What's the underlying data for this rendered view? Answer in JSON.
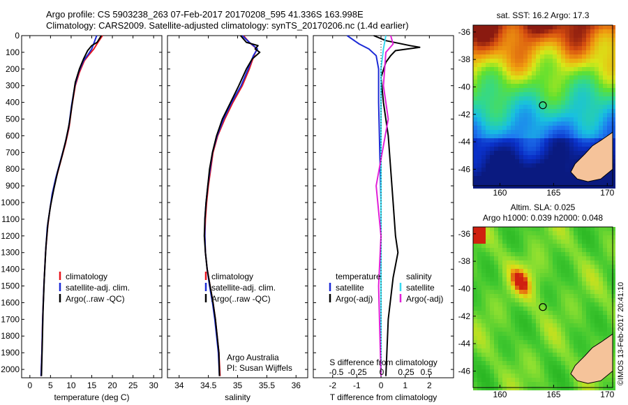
{
  "header": {
    "line1": "Argo profile: CS 5903238_263 07-Feb-2017 20170208_595 41.336S 163.998E",
    "line2": "Climatology: CARS2009. Satellite-adjusted climatology: synTS_20170206.nc (1.4d earlier)"
  },
  "colors": {
    "climatology": "#e8141c",
    "satellite": "#1c2bd6",
    "argo": "#000000",
    "satellite_salinity": "#38d8f0",
    "argo_salinity_adj": "#e020d8",
    "land": "#f5c39a"
  },
  "depth_ticks": [
    "0",
    "100",
    "200",
    "300",
    "400",
    "500",
    "600",
    "700",
    "800",
    "900",
    "1000",
    "1100",
    "1200",
    "1300",
    "1400",
    "1500",
    "1600",
    "1700",
    "1800",
    "1900",
    "2000"
  ],
  "chart_data": [
    {
      "type": "line",
      "xlabel": "temperature (deg C)",
      "ylabel": "",
      "xlim": [
        -2,
        32
      ],
      "ylim": [
        2050,
        0
      ],
      "xticks": [
        "0",
        "5",
        "10",
        "15",
        "20",
        "25",
        "30"
      ],
      "legend_entries": [
        "climatology",
        "satellite-adj. clim.",
        "Argo(..raw -QC)"
      ],
      "series": [
        {
          "name": "climatology",
          "points": [
            [
              17.6,
              0
            ],
            [
              16.5,
              40
            ],
            [
              15.5,
              80
            ],
            [
              14.5,
              110
            ],
            [
              13.2,
              150
            ],
            [
              12.0,
              220
            ],
            [
              11.0,
              300
            ],
            [
              10.2,
              420
            ],
            [
              9.5,
              550
            ],
            [
              8.6,
              650
            ],
            [
              7.5,
              750
            ],
            [
              6.4,
              850
            ],
            [
              5.5,
              950
            ],
            [
              4.8,
              1050
            ],
            [
              4.3,
              1150
            ],
            [
              3.8,
              1300
            ],
            [
              3.4,
              1500
            ],
            [
              3.1,
              1700
            ],
            [
              2.9,
              1900
            ],
            [
              2.7,
              2040
            ]
          ]
        },
        {
          "name": "satellite-adj. clim.",
          "points": [
            [
              16.2,
              0
            ],
            [
              15.6,
              40
            ],
            [
              15.0,
              80
            ],
            [
              14.2,
              110
            ],
            [
              13.0,
              150
            ],
            [
              11.8,
              220
            ],
            [
              10.9,
              300
            ],
            [
              10.1,
              420
            ],
            [
              9.4,
              550
            ],
            [
              8.5,
              650
            ],
            [
              7.4,
              750
            ],
            [
              6.3,
              850
            ],
            [
              5.4,
              950
            ],
            [
              4.8,
              1050
            ],
            [
              4.2,
              1150
            ],
            [
              3.8,
              1300
            ],
            [
              3.4,
              1500
            ],
            [
              3.1,
              1700
            ],
            [
              2.9,
              1900
            ],
            [
              2.7,
              2040
            ]
          ]
        },
        {
          "name": "Argo(..raw -QC)",
          "points": [
            [
              17.3,
              0
            ],
            [
              16.3,
              40
            ],
            [
              15.0,
              60
            ],
            [
              14.0,
              90
            ],
            [
              13.0,
              140
            ],
            [
              12.0,
              200
            ],
            [
              11.0,
              280
            ],
            [
              10.3,
              400
            ],
            [
              9.6,
              520
            ],
            [
              8.8,
              620
            ],
            [
              7.8,
              720
            ],
            [
              6.7,
              820
            ],
            [
              5.8,
              920
            ],
            [
              5.0,
              1020
            ],
            [
              4.4,
              1120
            ],
            [
              3.9,
              1260
            ],
            [
              3.5,
              1450
            ],
            [
              3.2,
              1650
            ],
            [
              3.0,
              1850
            ],
            [
              2.8,
              2040
            ]
          ]
        }
      ]
    },
    {
      "type": "line",
      "xlabel": "salinity",
      "xlim": [
        33.8,
        36.2
      ],
      "ylim": [
        2050,
        0
      ],
      "xticks": [
        "34",
        "34.5",
        "35",
        "35.5",
        "36"
      ],
      "legend_entries": [
        "climatology",
        "satellite-adj. clim.",
        "Argo(..raw -QC)"
      ],
      "annotation": [
        "Argo Australia",
        "PI: Susan Wijffels"
      ],
      "series": [
        {
          "name": "climatology",
          "points": [
            [
              35.1,
              0
            ],
            [
              35.2,
              40
            ],
            [
              35.33,
              80
            ],
            [
              35.28,
              120
            ],
            [
              35.2,
              200
            ],
            [
              35.08,
              300
            ],
            [
              34.92,
              400
            ],
            [
              34.78,
              500
            ],
            [
              34.66,
              600
            ],
            [
              34.58,
              700
            ],
            [
              34.54,
              800
            ],
            [
              34.5,
              900
            ],
            [
              34.47,
              1000
            ],
            [
              34.45,
              1100
            ],
            [
              34.44,
              1200
            ],
            [
              34.45,
              1300
            ],
            [
              34.48,
              1400
            ],
            [
              34.53,
              1500
            ],
            [
              34.58,
              1600
            ],
            [
              34.62,
              1700
            ],
            [
              34.65,
              1800
            ],
            [
              34.68,
              1900
            ],
            [
              34.7,
              2040
            ]
          ]
        },
        {
          "name": "satellite-adj. clim.",
          "points": [
            [
              35.08,
              0
            ],
            [
              35.2,
              40
            ],
            [
              35.34,
              80
            ],
            [
              35.27,
              120
            ],
            [
              35.18,
              200
            ],
            [
              35.06,
              300
            ],
            [
              34.9,
              400
            ],
            [
              34.76,
              500
            ],
            [
              34.65,
              600
            ],
            [
              34.57,
              700
            ],
            [
              34.53,
              800
            ],
            [
              34.49,
              900
            ],
            [
              34.46,
              1000
            ],
            [
              34.44,
              1100
            ],
            [
              34.44,
              1200
            ],
            [
              34.45,
              1300
            ],
            [
              34.48,
              1400
            ],
            [
              34.52,
              1500
            ],
            [
              34.57,
              1600
            ],
            [
              34.61,
              1700
            ],
            [
              34.64,
              1800
            ],
            [
              34.67,
              1900
            ],
            [
              34.69,
              2040
            ]
          ]
        },
        {
          "name": "Argo(..raw -QC)",
          "points": [
            [
              35.05,
              0
            ],
            [
              35.15,
              40
            ],
            [
              35.35,
              60
            ],
            [
              35.3,
              80
            ],
            [
              35.38,
              100
            ],
            [
              35.25,
              140
            ],
            [
              35.15,
              200
            ],
            [
              35.02,
              300
            ],
            [
              34.88,
              400
            ],
            [
              34.74,
              500
            ],
            [
              34.64,
              600
            ],
            [
              34.57,
              700
            ],
            [
              34.52,
              800
            ],
            [
              34.49,
              900
            ],
            [
              34.46,
              1000
            ],
            [
              34.44,
              1100
            ],
            [
              34.43,
              1200
            ],
            [
              34.45,
              1300
            ],
            [
              34.48,
              1400
            ],
            [
              34.53,
              1500
            ],
            [
              34.58,
              1600
            ],
            [
              34.62,
              1700
            ],
            [
              34.65,
              1800
            ],
            [
              34.68,
              1900
            ],
            [
              34.69,
              2040
            ]
          ]
        }
      ]
    },
    {
      "type": "line",
      "xlabel": "T difference from climatology",
      "secondary_label": "S difference from climatology",
      "xlim": [
        -2.8,
        3.0
      ],
      "ylim": [
        2050,
        0
      ],
      "xticks": [
        "-2",
        "-1",
        "0",
        "1",
        "2"
      ],
      "secondary_xticks": [
        "-0.5",
        "-0.25",
        "0",
        "0.25",
        "0.5"
      ],
      "legend_headers": [
        "temperature",
        "salinity"
      ],
      "legend_entries": [
        "satellite",
        "Argo(-adj)",
        "satellite",
        "Argo(-adj)"
      ],
      "series": [
        {
          "name": "satellite",
          "points": [
            [
              -1.4,
              0
            ],
            [
              -0.9,
              50
            ],
            [
              -0.5,
              80
            ],
            [
              -0.2,
              120
            ],
            [
              -0.1,
              200
            ],
            [
              -0.1,
              400
            ],
            [
              0,
              1000
            ],
            [
              0,
              2040
            ]
          ]
        },
        {
          "name": "Argo(-adj)",
          "points": [
            [
              -0.3,
              0
            ],
            [
              0.2,
              30
            ],
            [
              1.2,
              60
            ],
            [
              1.6,
              70
            ],
            [
              0.6,
              90
            ],
            [
              0.4,
              120
            ],
            [
              0.2,
              160
            ],
            [
              0,
              250
            ],
            [
              0.1,
              400
            ],
            [
              0.3,
              600
            ],
            [
              0.4,
              800
            ],
            [
              0.5,
              1000
            ],
            [
              0.6,
              1200
            ],
            [
              0.7,
              1300
            ],
            [
              0.5,
              1450
            ],
            [
              0.3,
              1700
            ],
            [
              0.2,
              2040
            ]
          ]
        },
        {
          "name": "satellite",
          "points": [
            [
              0.2,
              0
            ],
            [
              0.1,
              80
            ],
            [
              0,
              200
            ],
            [
              0,
              2040
            ]
          ]
        },
        {
          "name": "Argo(-adj)",
          "points": [
            [
              0.4,
              0
            ],
            [
              0.5,
              50
            ],
            [
              0.2,
              100
            ],
            [
              0.1,
              300
            ],
            [
              0.3,
              500
            ],
            [
              -0.2,
              900
            ],
            [
              0,
              1200
            ],
            [
              -0.1,
              1500
            ],
            [
              0,
              2040
            ]
          ]
        }
      ]
    },
    {
      "type": "heatmap",
      "title": "sat. SST: 16.2 Argo: 17.3",
      "xlim": [
        157.5,
        170.5
      ],
      "ylim": [
        -47.2,
        -35.5
      ],
      "xticks": [
        "160",
        "165",
        "170"
      ],
      "yticks": [
        "-36",
        "-38",
        "-40",
        "-42",
        "-44",
        "-46"
      ],
      "marker": {
        "lon": 163.998,
        "lat": -41.336
      }
    },
    {
      "type": "heatmap",
      "title": "Altim. SLA: 0.025",
      "subtitle": "Argo h1000: 0.039 h2000: 0.048",
      "xlim": [
        157.5,
        170.5
      ],
      "ylim": [
        -47.2,
        -35.5
      ],
      "xticks": [
        "160",
        "165",
        "170"
      ],
      "yticks": [
        "-36",
        "-38",
        "-40",
        "-42",
        "-44",
        "-46"
      ],
      "marker": {
        "lon": 163.998,
        "lat": -41.336
      }
    }
  ],
  "side_text": "©IMOS 13-Feb-2017 20:41:10"
}
